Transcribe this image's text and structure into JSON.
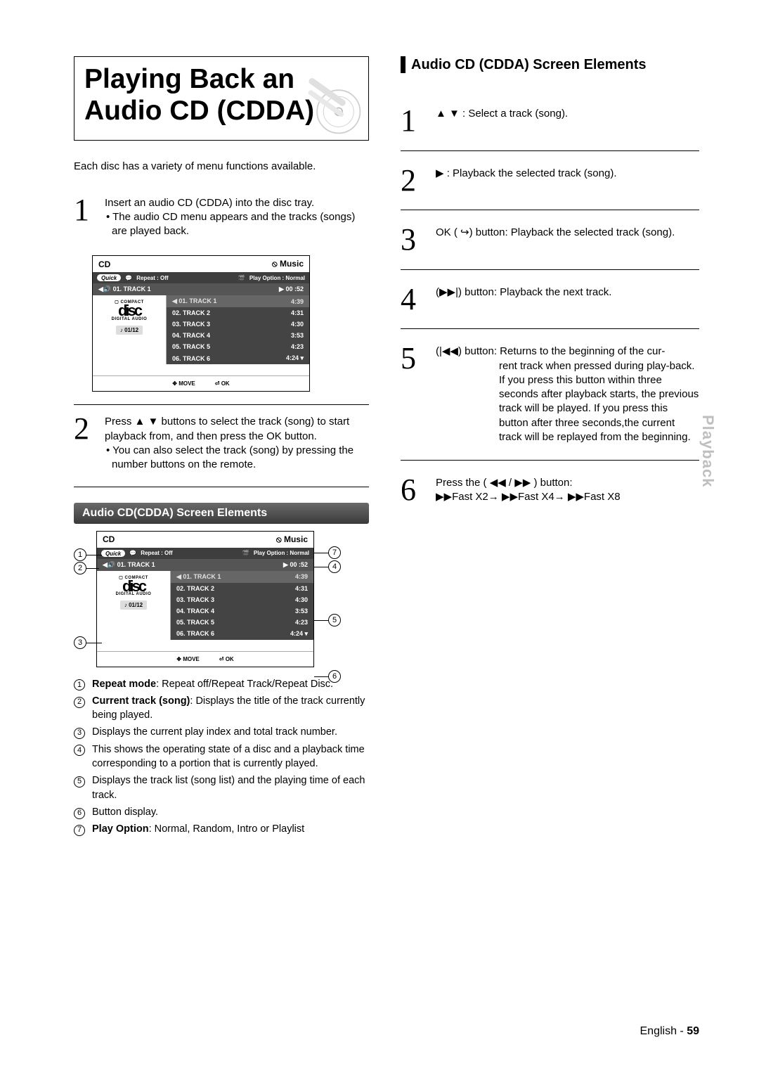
{
  "title": "Playing Back an Audio CD (CDDA)",
  "intro": "Each disc has a variety of menu functions available.",
  "left_steps": {
    "s1": {
      "num": "1",
      "line1": "Insert an audio CD (CDDA) into the disc tray.",
      "bullet": "• The audio CD menu appears and the tracks (songs) are played back."
    },
    "s2": {
      "num": "2",
      "line1_a": "Press ",
      "line1_b": " buttons to select the track (song) to start playback from, and then press the OK button.",
      "bullet": "• You can also select the track (song) by pressing the number buttons on the remote."
    }
  },
  "cd_screen": {
    "title_left": "CD",
    "title_right_icon": "⦸",
    "title_right": "Music",
    "quick": "Quick",
    "repeat": "Repeat : Off",
    "play_option": "Play Option : Normal",
    "now_icon": "◀🔊",
    "now_label": "01. TRACK 1",
    "elapsed_icon": "▶",
    "elapsed": "00 :52",
    "index": "♪ 01/12",
    "compact": "COMPACT",
    "disc_word": "dıṡc",
    "digital": "DIGITAL AUDIO",
    "tracks": [
      {
        "sel": true,
        "name": "01. TRACK 1",
        "time": "4:39"
      },
      {
        "sel": false,
        "name": "02. TRACK 2",
        "time": "4:31"
      },
      {
        "sel": false,
        "name": "03. TRACK 3",
        "time": "4:30"
      },
      {
        "sel": false,
        "name": "04. TRACK 4",
        "time": "3:53"
      },
      {
        "sel": false,
        "name": "05. TRACK 5",
        "time": "4:23"
      },
      {
        "sel": false,
        "name": "06. TRACK 6",
        "time": "4:24"
      }
    ],
    "move": "MOVE",
    "ok": "OK"
  },
  "section_bar": "Audio CD(CDDA) Screen Elements",
  "legend": [
    {
      "n": "1",
      "bold": "Repeat mode",
      "rest": ": Repeat off/Repeat Track/Repeat Disc."
    },
    {
      "n": "2",
      "bold": "Current track (song)",
      "rest": ": Displays the title of the track currently being played."
    },
    {
      "n": "3",
      "bold": "",
      "rest": "Displays the current play index and total track number."
    },
    {
      "n": "4",
      "bold": "",
      "rest": "This shows the operating state of a disc and a playback time corresponding to a portion that is currently played."
    },
    {
      "n": "5",
      "bold": "",
      "rest": "Displays the track list (song list) and the playing time of each track."
    },
    {
      "n": "6",
      "bold": "",
      "rest": "Button display."
    },
    {
      "n": "7",
      "bold": "Play Option",
      "rest": ": Normal, Random, Intro or Playlist"
    }
  ],
  "right_heading": "Audio CD (CDDA) Screen Elements",
  "right_steps": {
    "s1": {
      "num": "1",
      "pre": "",
      "sym": "▲ ▼",
      "post": " : Select a track (song)."
    },
    "s2": {
      "num": "2",
      "pre": "",
      "sym": "▶",
      "post": " : Playback the selected track (song)."
    },
    "s3": {
      "num": "3",
      "pre": "OK ( ",
      "sym": "⏯",
      "post": ") button: Playback the selected track (song)."
    },
    "s4": {
      "num": "4",
      "pre": "(",
      "sym": "▶▶|",
      "post": ") button: Playback the next track."
    },
    "s5": {
      "num": "5",
      "pre": "(",
      "sym": "|◀◀",
      "post": ") button: Returns to the beginning of the cur-",
      "hang1": "rent track when pressed during play-back.",
      "hang2": "If you press this button within three seconds after playback starts, the previous track will be played. If you press this button after three seconds,the current track will be replayed from the beginning."
    },
    "s6": {
      "num": "6",
      "line1": "Press the ( ◀◀  /  ▶▶ ) button:",
      "line2": "▶▶Fast X2→ ▶▶Fast X4→ ▶▶Fast X8"
    }
  },
  "side_tab": "Playback",
  "footer_lang": "English - ",
  "footer_page": "59"
}
